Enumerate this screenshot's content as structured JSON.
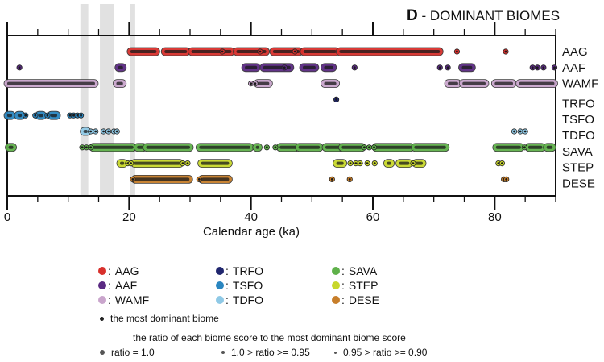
{
  "chart_data": {
    "type": "scatter",
    "title_letter": "D",
    "title_text": " - DOMINANT BIOMES",
    "xlabel": "Calendar age (ka)",
    "ylabel": "",
    "xlim": [
      0,
      90
    ],
    "x_ticks_major": [
      0,
      20,
      40,
      60,
      80
    ],
    "x_tick_labels": [
      "0",
      "20",
      "40",
      "60",
      "80"
    ],
    "x_ticks_minor_step": 5,
    "grid": false,
    "shaded_intervals_ka": [
      [
        12.0,
        13.3
      ],
      [
        15.2,
        17.5
      ],
      [
        20.1,
        21.0
      ]
    ],
    "categories": [
      "AAG",
      "AAF",
      "WAMF",
      "TRFO",
      "TSFO",
      "TDFO",
      "SAVA",
      "STEP",
      "DESE"
    ],
    "series": [
      {
        "name": "AAG",
        "color": "#d8302c",
        "segments": [
          [
            20.2,
            24.5
          ],
          [
            25.8,
            29.5
          ],
          [
            30.2,
            36.8
          ],
          [
            37.6,
            42.5
          ],
          [
            43.6,
            48.0
          ],
          [
            48.6,
            54.0
          ],
          [
            54.5,
            71.0
          ]
        ],
        "points": [
          35.3,
          41.5,
          47.2,
          73.8,
          81.8
        ]
      },
      {
        "name": "AAF",
        "color": "#5a2a82",
        "segments": [
          [
            18.2,
            19.0
          ],
          [
            39.0,
            41.0
          ],
          [
            42.0,
            46.5
          ],
          [
            48.5,
            50.6
          ],
          [
            52.0,
            53.5
          ],
          [
            74.6,
            76.3
          ]
        ],
        "points": [
          2.0,
          45.5,
          57.0,
          71.0,
          72.3,
          86.2,
          87.0,
          88.0,
          89.8
        ]
      },
      {
        "name": "WAMF",
        "color": "#c9a5cc",
        "segments": [
          [
            0.0,
            14.4
          ],
          [
            17.9,
            19.0
          ],
          [
            41.0,
            43.0
          ],
          [
            52.0,
            54.0
          ],
          [
            72.3,
            74.0
          ],
          [
            74.7,
            78.5
          ],
          [
            80.0,
            83.0
          ],
          [
            84.0,
            89.8
          ]
        ],
        "points": [
          40.0,
          40.7
        ]
      },
      {
        "name": "TRFO",
        "color": "#20266e",
        "segments": [],
        "points": [
          54.0
        ]
      },
      {
        "name": "TSFO",
        "color": "#2a86c0",
        "segments": [
          [
            0.0,
            0.8
          ],
          [
            1.7,
            2.4
          ],
          [
            5.1,
            5.9
          ],
          [
            7.1,
            8.2
          ]
        ],
        "points": [
          3.0,
          4.6,
          6.6,
          10.3,
          10.9,
          11.5,
          12.1
        ]
      },
      {
        "name": "TDFO",
        "color": "#8fc9e6",
        "segments": [
          [
            12.5,
            13.2
          ]
        ],
        "points": [
          13.7,
          14.5,
          15.8,
          16.6,
          17.5,
          18.0,
          83.2,
          84.2,
          85.0
        ]
      },
      {
        "name": "SAVA",
        "color": "#5fb14a",
        "segments": [
          [
            0.2,
            1.0
          ],
          [
            14.0,
            20.7
          ],
          [
            21.3,
            22.4
          ],
          [
            22.8,
            30.0
          ],
          [
            31.5,
            39.9
          ],
          [
            40.8,
            41.3
          ],
          [
            44.7,
            47.5
          ],
          [
            47.8,
            51.3
          ],
          [
            52.2,
            54.6
          ],
          [
            54.9,
            58.3
          ],
          [
            60.4,
            66.3
          ],
          [
            66.8,
            72.0
          ],
          [
            80.2,
            84.3
          ],
          [
            85.5,
            87.8
          ],
          [
            88.5,
            89.5
          ]
        ],
        "points": [
          12.3,
          13.0,
          13.7,
          42.6,
          44.0,
          58.6,
          59.4,
          60.2,
          84.9
        ]
      },
      {
        "name": "STEP",
        "color": "#c8d72b",
        "segments": [
          [
            18.5,
            19.2
          ],
          [
            20.8,
            28.4
          ],
          [
            31.8,
            36.4
          ],
          [
            54.0,
            55.2
          ],
          [
            62.3,
            63.0
          ],
          [
            64.3,
            66.0
          ],
          [
            67.0,
            68.2
          ]
        ],
        "points": [
          19.8,
          20.3,
          28.8,
          29.6,
          56.3,
          57.2,
          57.9,
          59.1,
          60.3,
          66.6,
          80.6,
          81.2
        ]
      },
      {
        "name": "DESE",
        "color": "#c77e2a",
        "segments": [
          [
            20.9,
            29.9
          ],
          [
            31.9,
            36.4
          ]
        ],
        "points": [
          20.6,
          31.5,
          53.3,
          56.2,
          81.5,
          81.9
        ]
      }
    ],
    "legend": {
      "placement": "bottom",
      "entries": [
        {
          "label": "AAG",
          "color": "#d8302c"
        },
        {
          "label": "AAF",
          "color": "#5a2a82"
        },
        {
          "label": "WAMF",
          "color": "#c9a5cc"
        },
        {
          "label": "TRFO",
          "color": "#20266e"
        },
        {
          "label": "TSFO",
          "color": "#2a86c0"
        },
        {
          "label": "TDFO",
          "color": "#8fc9e6"
        },
        {
          "label": "SAVA",
          "color": "#5fb14a"
        },
        {
          "label": "STEP",
          "color": "#c8d72b"
        },
        {
          "label": "DESE",
          "color": "#c77e2a"
        }
      ],
      "dominant_note": "the most dominant biome",
      "ratio_heading": "the ratio of each biome score to the most dominant biome score",
      "ratio_labels": [
        "ratio = 1.0",
        "1.0 > ratio >= 0.95",
        "0.95 > ratio >= 0.90"
      ]
    }
  }
}
